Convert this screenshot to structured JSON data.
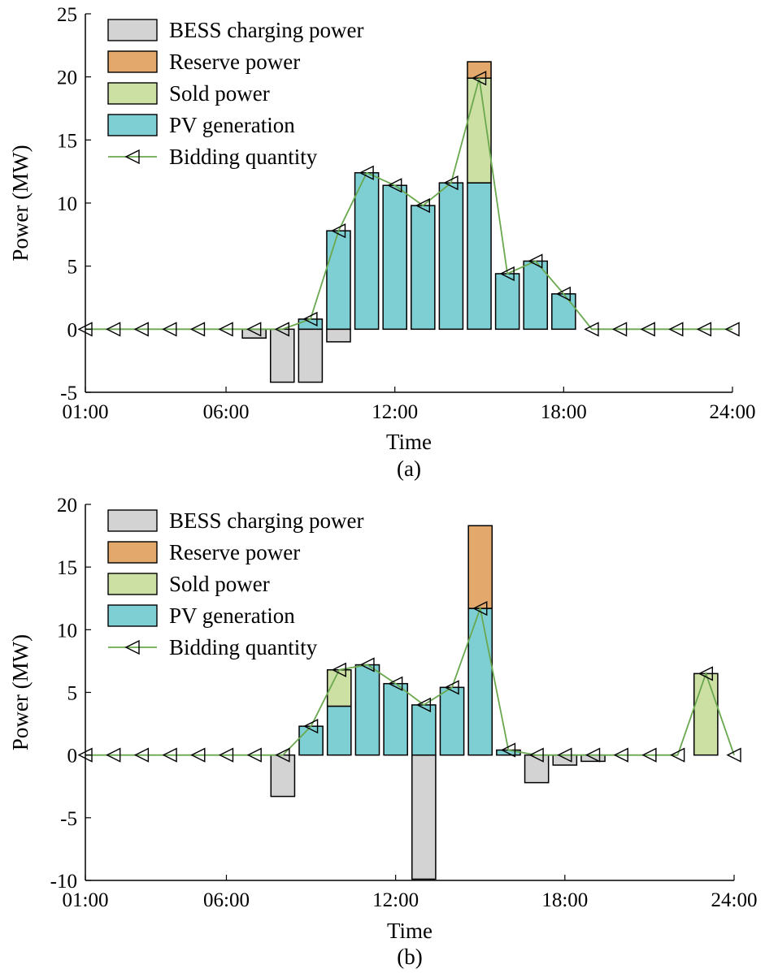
{
  "chart_data": [
    {
      "type": "bar",
      "caption": "(a)",
      "xlabel": "Time",
      "ylabel": "Power (MW)",
      "ylim": [
        -5,
        25
      ],
      "yticks": [
        -5,
        0,
        5,
        10,
        15,
        20,
        25
      ],
      "xlim": [
        1,
        24
      ],
      "xticks": [
        1,
        6,
        12,
        18,
        24
      ],
      "xtick_labels": [
        "01:00",
        "06:00",
        "12:00",
        "18:00",
        "24:00"
      ],
      "x": [
        1,
        2,
        3,
        4,
        5,
        6,
        7,
        8,
        9,
        10,
        11,
        12,
        13,
        14,
        15,
        16,
        17,
        18,
        19,
        20,
        21,
        22,
        23,
        24
      ],
      "legend_position": "top-left",
      "grid": false,
      "stacked": true,
      "legend": [
        "BESS charging power",
        "Reserve power",
        "Sold power",
        "PV generation",
        "Bidding quantity"
      ],
      "series": [
        {
          "name": "BESS charging power",
          "kind": "bar",
          "color": "#d3d3d3",
          "values": [
            0,
            0,
            0,
            0,
            0,
            0,
            -0.7,
            -4.2,
            -4.2,
            -1.0,
            0,
            0,
            0,
            0,
            0,
            0,
            0,
            0,
            0,
            0,
            0,
            0,
            0,
            0
          ]
        },
        {
          "name": "PV generation",
          "kind": "bar",
          "color": "#7ecfd4",
          "values": [
            0,
            0,
            0,
            0,
            0,
            0,
            0,
            0,
            0.8,
            7.8,
            12.4,
            11.4,
            9.8,
            11.6,
            11.6,
            4.4,
            5.4,
            2.8,
            0,
            0,
            0,
            0,
            0,
            0
          ]
        },
        {
          "name": "Sold power",
          "kind": "bar",
          "color": "#cde0a4",
          "values": [
            0,
            0,
            0,
            0,
            0,
            0,
            0,
            0,
            0,
            0,
            0,
            0,
            0,
            0,
            8.3,
            0,
            0,
            0,
            0,
            0,
            0,
            0,
            0,
            0
          ]
        },
        {
          "name": "Reserve power",
          "kind": "bar",
          "color": "#e3a86b",
          "values": [
            0,
            0,
            0,
            0,
            0,
            0,
            0,
            0,
            0,
            0,
            0,
            0,
            0,
            0,
            1.3,
            0,
            0,
            0,
            0,
            0,
            0,
            0,
            0,
            0
          ]
        },
        {
          "name": "Bidding quantity",
          "kind": "line",
          "color": "#6aa84f",
          "values": [
            0,
            0,
            0,
            0,
            0,
            0,
            0,
            0,
            0.8,
            7.8,
            12.4,
            11.4,
            9.8,
            11.6,
            19.9,
            4.4,
            5.4,
            2.8,
            0,
            0,
            0,
            0,
            0,
            0
          ]
        }
      ]
    },
    {
      "type": "bar",
      "caption": "(b)",
      "xlabel": "Time",
      "ylabel": "Power (MW)",
      "ylim": [
        -10,
        20
      ],
      "yticks": [
        -10,
        -5,
        0,
        5,
        10,
        15,
        20
      ],
      "xlim": [
        1,
        24
      ],
      "xticks": [
        1,
        6,
        12,
        18,
        24
      ],
      "xtick_labels": [
        "01:00",
        "06:00",
        "12:00",
        "18:00",
        "24:00"
      ],
      "x": [
        1,
        2,
        3,
        4,
        5,
        6,
        7,
        8,
        9,
        10,
        11,
        12,
        13,
        14,
        15,
        16,
        17,
        18,
        19,
        20,
        21,
        22,
        23,
        24
      ],
      "legend_position": "top-left",
      "grid": false,
      "stacked": true,
      "legend": [
        "BESS charging power",
        "Reserve power",
        "Sold power",
        "PV generation",
        "Bidding quantity"
      ],
      "series": [
        {
          "name": "BESS charging power",
          "kind": "bar",
          "color": "#d3d3d3",
          "values": [
            0,
            0,
            0,
            0,
            0,
            0,
            0,
            -3.3,
            0,
            0,
            0,
            0,
            -9.9,
            0,
            0,
            0,
            -2.2,
            -0.8,
            -0.5,
            0,
            0,
            0,
            0,
            0
          ]
        },
        {
          "name": "PV generation",
          "kind": "bar",
          "color": "#7ecfd4",
          "values": [
            0,
            0,
            0,
            0,
            0,
            0,
            0,
            0,
            2.3,
            3.9,
            7.2,
            5.7,
            4.0,
            5.4,
            11.7,
            0.4,
            0,
            0,
            0,
            0,
            0,
            0,
            0,
            0
          ]
        },
        {
          "name": "Sold power",
          "kind": "bar",
          "color": "#cde0a4",
          "values": [
            0,
            0,
            0,
            0,
            0,
            0,
            0,
            0,
            0,
            2.9,
            0,
            0,
            0,
            0,
            0,
            0,
            0,
            0,
            0,
            0,
            0,
            0,
            6.5,
            0
          ]
        },
        {
          "name": "Reserve power",
          "kind": "bar",
          "color": "#e3a86b",
          "values": [
            0,
            0,
            0,
            0,
            0,
            0,
            0,
            0,
            0,
            0,
            0,
            0,
            0,
            0,
            6.6,
            0,
            0,
            0,
            0,
            0,
            0,
            0,
            0,
            0
          ]
        },
        {
          "name": "Bidding quantity",
          "kind": "line",
          "color": "#6aa84f",
          "values": [
            0,
            0,
            0,
            0,
            0,
            0,
            0,
            0,
            2.3,
            6.8,
            7.2,
            5.7,
            4.0,
            5.4,
            11.7,
            0.4,
            0,
            0,
            0,
            0,
            0,
            0,
            6.5,
            0
          ]
        }
      ]
    }
  ]
}
